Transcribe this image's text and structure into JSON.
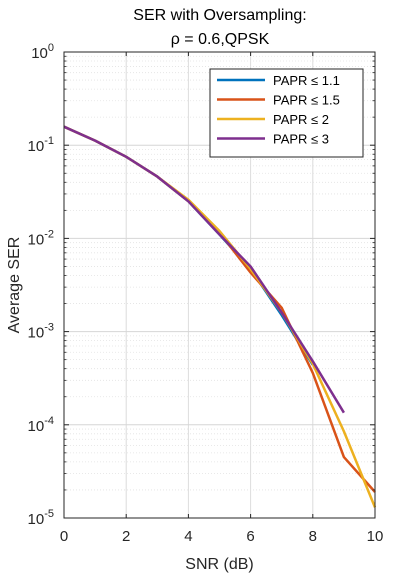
{
  "chart_data": {
    "type": "line",
    "title": "SER with Oversampling:",
    "subtitle": "ρ = 0.6,QPSK",
    "xlabel": "SNR (dB)",
    "ylabel": "Average SER",
    "xlim": [
      0,
      10
    ],
    "ylim": [
      1e-05,
      1
    ],
    "yscale": "log",
    "grid": true,
    "legend_position": "top-right",
    "x_ticks": [
      "0",
      "2",
      "4",
      "6",
      "8",
      "10"
    ],
    "y_ticks": [
      {
        "base": "10",
        "exp": "0"
      },
      {
        "base": "10",
        "exp": "-1"
      },
      {
        "base": "10",
        "exp": "-2"
      },
      {
        "base": "10",
        "exp": "-3"
      },
      {
        "base": "10",
        "exp": "-4"
      },
      {
        "base": "10",
        "exp": "-5"
      }
    ],
    "series": [
      {
        "name": "PAPR ≤ 1.1",
        "color": "#0072BD",
        "x": [
          0,
          1,
          2,
          3,
          4,
          5,
          6,
          7,
          8
        ],
        "y": [
          0.158,
          0.112,
          0.075,
          0.046,
          0.025,
          0.011,
          0.0047,
          0.0015,
          0.00044
        ]
      },
      {
        "name": "PAPR ≤ 1.5",
        "color": "#D95319",
        "x": [
          0,
          1,
          2,
          3,
          4,
          5,
          6,
          7,
          8,
          9,
          10
        ],
        "y": [
          0.158,
          0.112,
          0.075,
          0.046,
          0.025,
          0.0115,
          0.0043,
          0.0018,
          0.00036,
          4.5e-05,
          1.9e-05
        ]
      },
      {
        "name": "PAPR ≤ 2",
        "color": "#EDB120",
        "x": [
          0,
          1,
          2,
          3,
          4,
          5,
          6,
          7,
          8,
          9,
          10
        ],
        "y": [
          0.158,
          0.112,
          0.075,
          0.046,
          0.026,
          0.012,
          0.0047,
          0.0016,
          0.00045,
          8.5e-05,
          1.3e-05
        ]
      },
      {
        "name": "PAPR ≤ 3",
        "color": "#7E2F8E",
        "x": [
          0,
          1,
          2,
          3,
          4,
          5,
          6,
          7,
          8,
          9
        ],
        "y": [
          0.158,
          0.112,
          0.075,
          0.046,
          0.025,
          0.011,
          0.005,
          0.0016,
          0.00048,
          0.000135
        ]
      }
    ]
  }
}
